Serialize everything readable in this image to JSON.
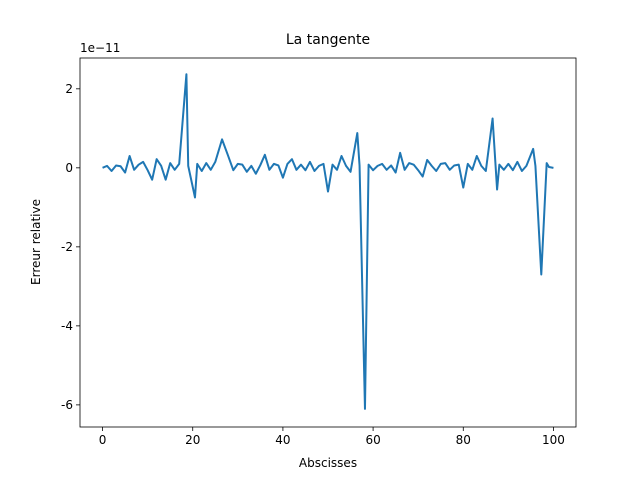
{
  "chart_data": {
    "type": "line",
    "title": "La tangente",
    "xlabel": "Abscisses",
    "ylabel": "Erreur relative",
    "offset_label": "1e−11",
    "x": [
      0,
      1,
      2,
      3,
      4,
      5,
      6,
      7,
      8,
      9,
      10,
      11,
      12,
      13,
      14,
      15,
      16,
      17,
      18.6,
      19,
      20.5,
      21,
      22,
      23,
      24,
      25,
      26.5,
      27.8,
      29,
      30,
      31,
      32,
      33,
      34,
      35,
      36,
      37,
      38,
      39,
      40,
      41,
      42,
      43,
      44,
      45,
      46,
      47,
      48,
      49,
      50,
      51,
      52,
      53,
      54,
      55,
      56.5,
      57,
      58.2,
      59,
      60,
      61,
      62,
      63,
      64,
      65,
      66,
      67,
      68,
      69,
      70,
      71,
      72,
      73,
      74,
      75,
      76,
      77,
      78,
      79,
      80,
      81,
      82,
      83,
      84,
      85,
      86.5,
      87.5,
      88,
      89,
      90,
      91,
      92,
      93,
      94,
      95.5,
      96,
      97.3,
      98.5,
      99,
      100
    ],
    "series": [
      {
        "color": "#1f77b4",
        "values": [
          0,
          0.05,
          -0.08,
          0.06,
          0.04,
          -0.12,
          0.3,
          -0.05,
          0.08,
          0.15,
          -0.06,
          -0.3,
          0.22,
          0.05,
          -0.3,
          0.12,
          -0.05,
          0.1,
          2.37,
          0.05,
          -0.75,
          0.1,
          -0.08,
          0.12,
          -0.05,
          0.15,
          0.72,
          0.32,
          -0.06,
          0.1,
          0.08,
          -0.1,
          0.05,
          -0.15,
          0.07,
          0.33,
          -0.05,
          0.1,
          0.06,
          -0.25,
          0.1,
          0.22,
          -0.05,
          0.08,
          -0.06,
          0.15,
          -0.08,
          0.05,
          0.1,
          -0.6,
          0.08,
          -0.05,
          0.3,
          0.05,
          -0.1,
          0.88,
          0.05,
          -6.1,
          0.08,
          -0.06,
          0.05,
          0.1,
          -0.05,
          0.06,
          -0.12,
          0.38,
          -0.05,
          0.12,
          0.08,
          -0.06,
          -0.22,
          0.2,
          0.05,
          -0.08,
          0.1,
          0.12,
          -0.05,
          0.06,
          0.08,
          -0.5,
          0.1,
          -0.05,
          0.3,
          0.05,
          -0.08,
          1.25,
          -0.55,
          0.08,
          -0.05,
          0.1,
          -0.06,
          0.15,
          -0.08,
          0.05,
          0.48,
          0.05,
          -2.7,
          0.12,
          0.02,
          0
        ]
      }
    ],
    "xlim": [
      -5,
      105
    ],
    "xticks": [
      0,
      20,
      40,
      60,
      80,
      100
    ],
    "ylim": [
      -6.56,
      2.78
    ],
    "yticks": [
      -6,
      -4,
      -2,
      0,
      2
    ]
  }
}
